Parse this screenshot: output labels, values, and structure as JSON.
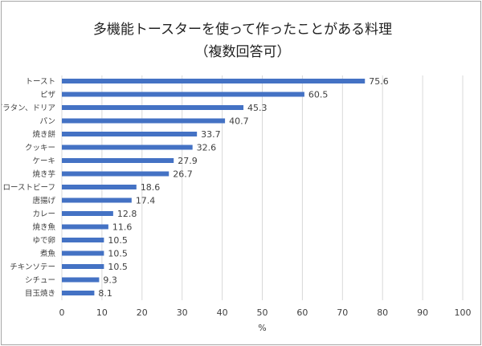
{
  "chart_data": {
    "type": "bar",
    "orientation": "horizontal",
    "title": "多機能トースターを使って作ったことがある料理",
    "subtitle": "（複数回答可）",
    "xlabel": "%",
    "ylabel": "",
    "xlim": [
      0,
      100
    ],
    "xticks": [
      0,
      10,
      20,
      30,
      40,
      50,
      60,
      70,
      80,
      90,
      100
    ],
    "grid": true,
    "data_labels": true,
    "bar_color": "#4472c4",
    "categories": [
      "トースト",
      "ピザ",
      "グラタン、ドリア",
      "パン",
      "焼き餅",
      "クッキー",
      "ケーキ",
      "焼き芋",
      "ローストビーフ",
      "唐揚げ",
      "カレー",
      "焼き魚",
      "ゆで卵",
      "煮魚",
      "チキンソテー",
      "シチュー",
      "目玉焼き"
    ],
    "values": [
      75.6,
      60.5,
      45.3,
      40.7,
      33.7,
      32.6,
      27.9,
      26.7,
      18.6,
      17.4,
      12.8,
      11.6,
      10.5,
      10.5,
      10.5,
      9.3,
      8.1
    ]
  }
}
